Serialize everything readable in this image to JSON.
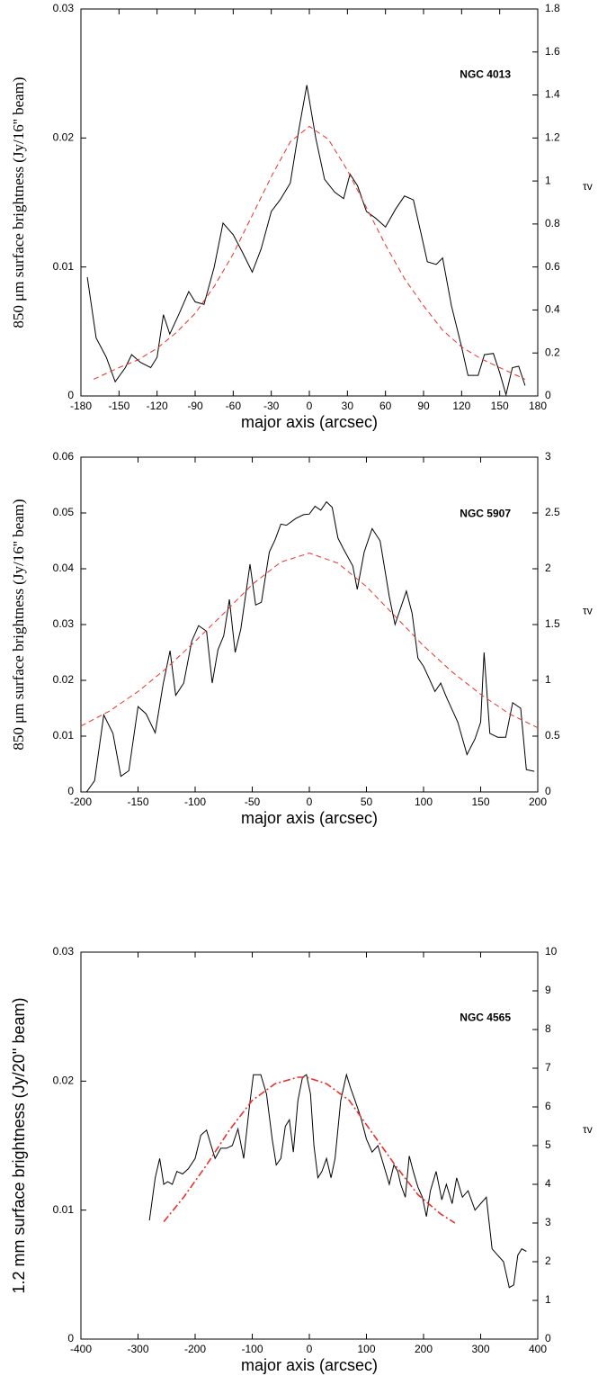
{
  "chart_data": [
    {
      "type": "line",
      "annotation": "NGC 4013",
      "xlabel": "major axis (arcsec)",
      "ylabel": "850 μm surface brightness (Jy/16'' beam)",
      "y2label": "τv",
      "xlim": [
        -180,
        180
      ],
      "xticks": [
        -180,
        -150,
        -120,
        -90,
        -60,
        -30,
        0,
        30,
        60,
        90,
        120,
        150,
        180
      ],
      "ylim": [
        0,
        0.03
      ],
      "yticks": [
        0,
        0.01,
        0.02,
        0.03
      ],
      "y2lim": [
        0,
        1.8
      ],
      "y2ticks": [
        0,
        0.2,
        0.4,
        0.6,
        0.8,
        1,
        1.2,
        1.4,
        1.6,
        1.8
      ],
      "series": [
        {
          "color": "#000000",
          "dash": "solid",
          "x": [
            -175,
            -168,
            -160,
            -153,
            -145,
            -140,
            -133,
            -125,
            -120,
            -115,
            -110,
            -103,
            -95,
            -90,
            -83,
            -75,
            -68,
            -60,
            -53,
            -45,
            -38,
            -30,
            -23,
            -15,
            -8,
            -2,
            5,
            12,
            20,
            27,
            32,
            38,
            45,
            52,
            60,
            68,
            75,
            82,
            88,
            93,
            100,
            105,
            112,
            120,
            125,
            133,
            138,
            145,
            150,
            155,
            160,
            165,
            170
          ],
          "values": [
            0.0092,
            0.0045,
            0.003,
            0.0011,
            0.0022,
            0.0032,
            0.0026,
            0.0022,
            0.003,
            0.0063,
            0.0048,
            0.0063,
            0.0081,
            0.0073,
            0.0071,
            0.01,
            0.0134,
            0.0125,
            0.0112,
            0.0096,
            0.0114,
            0.0143,
            0.0152,
            0.0165,
            0.0208,
            0.0241,
            0.02,
            0.0168,
            0.0158,
            0.0153,
            0.0172,
            0.0163,
            0.0143,
            0.0138,
            0.0131,
            0.0145,
            0.0155,
            0.0152,
            0.0126,
            0.0104,
            0.0102,
            0.0107,
            0.007,
            0.0038,
            0.0016,
            0.0016,
            0.0032,
            0.0033,
            0.0018,
            0.0001,
            0.0022,
            0.0023,
            0.0008
          ]
        },
        {
          "color": "#e8312a",
          "dash": "dashed",
          "x": [
            -170,
            -150,
            -135,
            -120,
            -105,
            -90,
            -75,
            -60,
            -45,
            -30,
            -15,
            0,
            15,
            30,
            45,
            60,
            75,
            90,
            105,
            120,
            135,
            150,
            170
          ],
          "values": [
            0.0013,
            0.0022,
            0.0028,
            0.0037,
            0.0049,
            0.0064,
            0.0085,
            0.011,
            0.014,
            0.017,
            0.0197,
            0.0209,
            0.0199,
            0.0175,
            0.0146,
            0.0117,
            0.0091,
            0.007,
            0.0051,
            0.0038,
            0.0029,
            0.0022,
            0.0013
          ]
        }
      ]
    },
    {
      "type": "line",
      "annotation": "NGC 5907",
      "xlabel": "major axis (arcsec)",
      "ylabel": "850 μm surface brightness (Jy/16'' beam)",
      "y2label": "τv",
      "xlim": [
        -200,
        200
      ],
      "xticks": [
        -200,
        -150,
        -100,
        -50,
        0,
        50,
        100,
        150,
        200
      ],
      "ylim": [
        0,
        0.06
      ],
      "yticks": [
        0,
        0.01,
        0.02,
        0.03,
        0.04,
        0.05,
        0.06
      ],
      "y2lim": [
        0,
        3
      ],
      "y2ticks": [
        0,
        0.5,
        1,
        1.5,
        2,
        2.5,
        3
      ],
      "series": [
        {
          "color": "#000000",
          "dash": "solid",
          "x": [
            -195,
            -188,
            -180,
            -172,
            -165,
            -158,
            -150,
            -143,
            -135,
            -128,
            -122,
            -117,
            -110,
            -103,
            -97,
            -90,
            -85,
            -80,
            -75,
            -70,
            -65,
            -60,
            -52,
            -47,
            -42,
            -35,
            -30,
            -25,
            -20,
            -12,
            -5,
            0,
            5,
            10,
            15,
            20,
            25,
            30,
            38,
            42,
            48,
            55,
            62,
            70,
            75,
            80,
            85,
            90,
            95,
            100,
            105,
            110,
            115,
            120,
            130,
            138,
            145,
            150,
            153,
            158,
            165,
            172,
            178,
            185,
            190,
            197
          ],
          "values": [
            0,
            0.002,
            0.0138,
            0.0105,
            0.0028,
            0.0038,
            0.0153,
            0.014,
            0.0106,
            0.0193,
            0.0253,
            0.0173,
            0.0195,
            0.027,
            0.0298,
            0.0288,
            0.0195,
            0.0255,
            0.028,
            0.0345,
            0.025,
            0.0292,
            0.0408,
            0.0335,
            0.034,
            0.043,
            0.0452,
            0.048,
            0.0478,
            0.049,
            0.0497,
            0.0498,
            0.0512,
            0.0505,
            0.052,
            0.051,
            0.0455,
            0.0435,
            0.0405,
            0.0363,
            0.043,
            0.0472,
            0.045,
            0.035,
            0.03,
            0.033,
            0.036,
            0.032,
            0.024,
            0.0225,
            0.0203,
            0.018,
            0.0195,
            0.017,
            0.0125,
            0.0067,
            0.0095,
            0.0125,
            0.025,
            0.0105,
            0.0098,
            0.0098,
            0.016,
            0.015,
            0.004,
            0.0037
          ]
        },
        {
          "color": "#e8312a",
          "dash": "dashed",
          "x": [
            -200,
            -175,
            -150,
            -125,
            -100,
            -75,
            -50,
            -25,
            0,
            25,
            50,
            75,
            100,
            125,
            150,
            175,
            200
          ],
          "values": [
            0.0118,
            0.0145,
            0.018,
            0.0222,
            0.027,
            0.032,
            0.0372,
            0.0412,
            0.0428,
            0.041,
            0.0368,
            0.0315,
            0.0262,
            0.0215,
            0.0175,
            0.014,
            0.0115
          ]
        }
      ]
    },
    {
      "type": "line",
      "annotation": "NGC 4565",
      "xlabel": "major axis (arcsec)",
      "ylabel": "1.2 mm surface brightness (Jy/20'' beam)",
      "y2label": "τv",
      "xlim": [
        -400,
        400
      ],
      "xticks": [
        -400,
        -300,
        -200,
        -100,
        0,
        100,
        200,
        300,
        400
      ],
      "ylim": [
        0,
        0.03
      ],
      "yticks": [
        0,
        0.01,
        0.02,
        0.03
      ],
      "y2lim": [
        0,
        10
      ],
      "y2ticks": [
        0,
        1,
        2,
        3,
        4,
        5,
        6,
        7,
        8,
        9,
        10
      ],
      "series": [
        {
          "color": "#000000",
          "dash": "solid",
          "x": [
            -280,
            -270,
            -262,
            -255,
            -248,
            -240,
            -232,
            -222,
            -212,
            -200,
            -190,
            -180,
            -172,
            -165,
            -155,
            -145,
            -135,
            -125,
            -115,
            -105,
            -98,
            -85,
            -75,
            -65,
            -58,
            -50,
            -42,
            -35,
            -28,
            -20,
            -12,
            -5,
            2,
            8,
            15,
            22,
            30,
            38,
            45,
            55,
            65,
            72,
            80,
            90,
            100,
            110,
            120,
            130,
            140,
            148,
            155,
            160,
            168,
            175,
            182,
            190,
            198,
            205,
            212,
            222,
            232,
            240,
            250,
            258,
            268,
            278,
            290,
            300,
            310,
            320,
            330,
            340,
            350,
            358,
            365,
            372,
            380
          ],
          "values": [
            0.0092,
            0.0125,
            0.014,
            0.012,
            0.0122,
            0.012,
            0.013,
            0.0128,
            0.0132,
            0.014,
            0.0158,
            0.0162,
            0.015,
            0.014,
            0.0148,
            0.0148,
            0.015,
            0.0163,
            0.014,
            0.018,
            0.0205,
            0.0205,
            0.019,
            0.0155,
            0.0135,
            0.014,
            0.0165,
            0.017,
            0.0145,
            0.0185,
            0.0203,
            0.0205,
            0.019,
            0.015,
            0.0125,
            0.013,
            0.014,
            0.0125,
            0.014,
            0.0185,
            0.0205,
            0.0195,
            0.0185,
            0.0172,
            0.0155,
            0.0145,
            0.015,
            0.0135,
            0.012,
            0.0135,
            0.013,
            0.012,
            0.011,
            0.0142,
            0.013,
            0.0118,
            0.011,
            0.0095,
            0.0115,
            0.013,
            0.0108,
            0.012,
            0.0105,
            0.0125,
            0.011,
            0.0115,
            0.01,
            0.0105,
            0.011,
            0.007,
            0.0065,
            0.006,
            0.004,
            0.0042,
            0.0065,
            0.007,
            0.0068
          ]
        },
        {
          "color": "#e8312a",
          "dash": "dash-dot",
          "x": [
            -255,
            -220,
            -180,
            -140,
            -100,
            -60,
            -20,
            -5,
            30,
            70,
            110,
            150,
            190,
            230,
            255
          ],
          "values": [
            0.0091,
            0.011,
            0.0135,
            0.0162,
            0.0185,
            0.0198,
            0.0203,
            0.0203,
            0.0198,
            0.0185,
            0.016,
            0.0135,
            0.0112,
            0.0097,
            0.009
          ]
        }
      ]
    }
  ]
}
